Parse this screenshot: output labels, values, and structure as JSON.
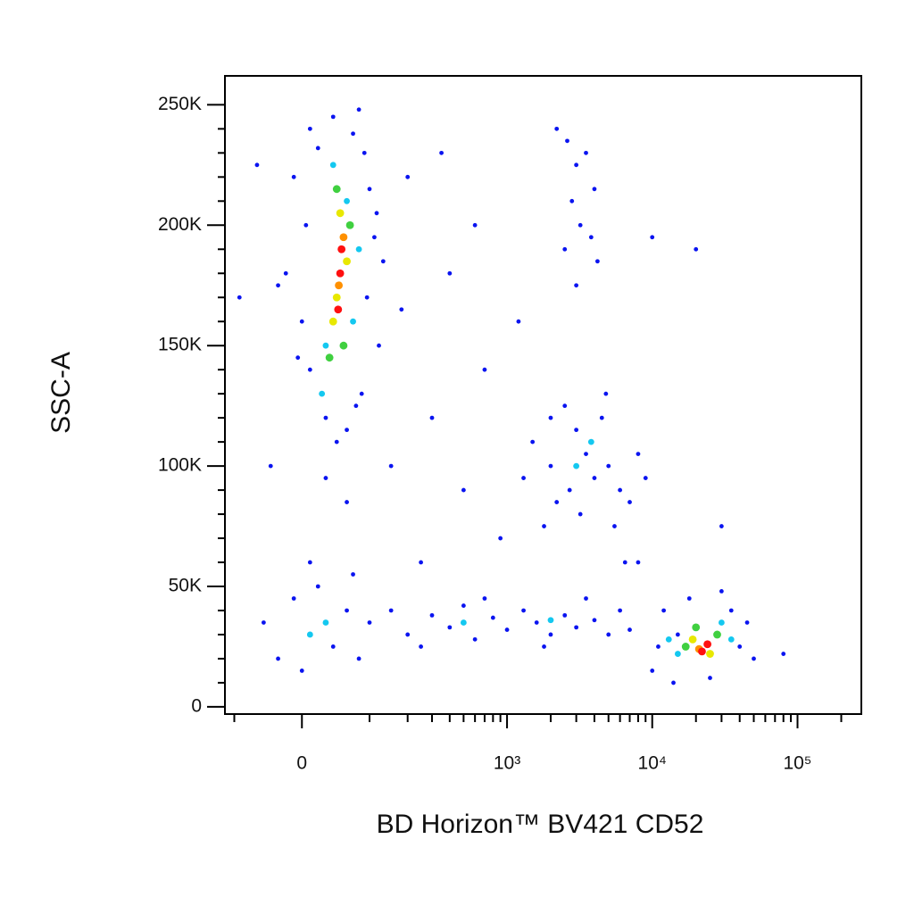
{
  "chart_data": {
    "type": "scatter",
    "xlabel": "BD Horizon™ BV421 CD52",
    "ylabel": "SSC-A",
    "xscale": "biexponential",
    "xlim": [
      -120,
      275000
    ],
    "ylim": [
      -3000,
      262000
    ],
    "xticks": [
      0,
      {
        "value": 1000,
        "label": "10³"
      },
      {
        "value": 10000,
        "label": "10⁴"
      },
      {
        "value": 100000,
        "label": "10⁵"
      }
    ],
    "xminorticks": [
      -100,
      100,
      200,
      300,
      400,
      500,
      600,
      700,
      800,
      900,
      2000,
      3000,
      4000,
      5000,
      6000,
      7000,
      8000,
      9000,
      20000,
      30000,
      40000,
      50000,
      60000,
      70000,
      80000,
      90000,
      200000
    ],
    "yticks": [
      0,
      {
        "value": 50000,
        "label": "50K"
      },
      {
        "value": 100000,
        "label": "100K"
      },
      {
        "value": 150000,
        "label": "150K"
      },
      {
        "value": 200000,
        "label": "200K"
      },
      {
        "value": 250000,
        "label": "250K"
      }
    ],
    "yminorticks": [
      10000,
      20000,
      30000,
      40000,
      60000,
      70000,
      80000,
      90000,
      110000,
      120000,
      130000,
      140000,
      160000,
      170000,
      180000,
      190000,
      210000,
      220000,
      230000,
      240000
    ],
    "series": [
      {
        "color": "#0a14f0",
        "x": [
          10,
          40,
          70,
          90,
          -10,
          100,
          5,
          110,
          -20,
          95,
          0,
          120,
          10,
          85,
          30,
          60,
          -30,
          130,
          45,
          75,
          -5,
          115,
          20,
          80,
          200,
          400,
          700,
          300,
          150,
          500,
          900,
          250,
          60,
          30,
          -40,
          1200,
          2000,
          180,
          600,
          350,
          -60,
          -90,
          10000,
          20000,
          30000,
          8000,
          2200,
          2600,
          3000,
          3500,
          4000,
          2800,
          3200,
          3800,
          2500,
          4200,
          3000,
          1500,
          2000,
          2500,
          3000,
          3500,
          4000,
          5000,
          6000,
          7000,
          2200,
          1800,
          8000,
          4500,
          3200,
          2700,
          5500,
          9000,
          6500,
          1300,
          4800,
          100,
          150,
          200,
          300,
          400,
          500,
          600,
          800,
          1000,
          1300,
          1600,
          2000,
          2500,
          3000,
          4000,
          5000,
          6000,
          7000,
          250,
          700,
          1800,
          3500,
          -30,
          -10,
          0,
          20,
          40,
          60,
          -50,
          80,
          10,
          70,
          10000,
          12000,
          14000,
          18000,
          25000,
          35000,
          40000,
          45000,
          11000,
          30000,
          50000,
          15000,
          80000
        ],
        "values": [
          240000,
          245000,
          238000,
          230000,
          220000,
          215000,
          200000,
          195000,
          180000,
          170000,
          160000,
          150000,
          140000,
          130000,
          120000,
          115000,
          175000,
          185000,
          110000,
          125000,
          145000,
          205000,
          232000,
          248000,
          220000,
          180000,
          140000,
          120000,
          100000,
          90000,
          70000,
          60000,
          85000,
          95000,
          100000,
          160000,
          120000,
          165000,
          200000,
          230000,
          225000,
          170000,
          195000,
          190000,
          75000,
          60000,
          240000,
          235000,
          225000,
          230000,
          215000,
          210000,
          200000,
          195000,
          190000,
          185000,
          175000,
          110000,
          100000,
          125000,
          115000,
          105000,
          95000,
          100000,
          90000,
          85000,
          85000,
          75000,
          105000,
          120000,
          80000,
          90000,
          75000,
          95000,
          60000,
          95000,
          130000,
          35000,
          40000,
          30000,
          38000,
          33000,
          42000,
          28000,
          37000,
          32000,
          40000,
          35000,
          30000,
          38000,
          33000,
          36000,
          30000,
          40000,
          32000,
          25000,
          45000,
          25000,
          45000,
          20000,
          45000,
          15000,
          50000,
          25000,
          40000,
          35000,
          20000,
          60000,
          55000,
          15000,
          40000,
          10000,
          45000,
          12000,
          40000,
          25000,
          35000,
          25000,
          48000,
          20000,
          30000,
          22000
        ]
      },
      {
        "color": "#14c8f0",
        "x": [
          30,
          70,
          25,
          80,
          40,
          60,
          10,
          30,
          3000,
          3800,
          500,
          2000,
          15000,
          30000,
          35000,
          13000
        ],
        "values": [
          150000,
          160000,
          130000,
          190000,
          225000,
          210000,
          30000,
          35000,
          100000,
          110000,
          35000,
          36000,
          22000,
          35000,
          28000,
          28000
        ]
      },
      {
        "color": "#40d040",
        "x": [
          35,
          65,
          45,
          55,
          17000,
          28000,
          20000
        ],
        "values": [
          145000,
          200000,
          215000,
          150000,
          25000,
          30000,
          33000
        ]
      },
      {
        "color": "#e8e800",
        "x": [
          40,
          60,
          50,
          45,
          19000,
          25000
        ],
        "values": [
          160000,
          185000,
          205000,
          170000,
          28000,
          22000
        ]
      },
      {
        "color": "#ff9000",
        "x": [
          48,
          55,
          21000
        ],
        "values": [
          175000,
          195000,
          24000
        ]
      },
      {
        "color": "#ff1010",
        "x": [
          50,
          52,
          47,
          22000,
          24000
        ],
        "values": [
          180000,
          190000,
          165000,
          23000,
          26000
        ]
      }
    ]
  }
}
